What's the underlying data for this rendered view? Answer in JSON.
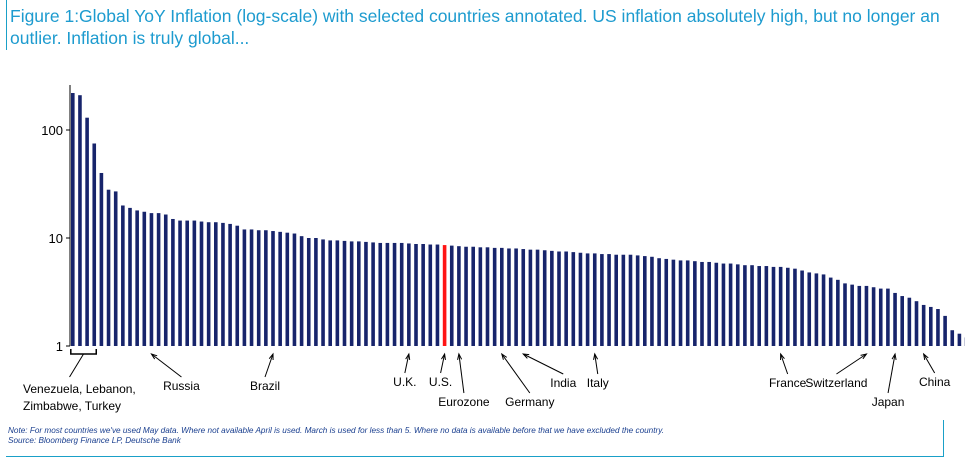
{
  "title": "Figure 1:Global YoY Inflation (log-scale) with selected countries annotated. US inflation absolutely high, but no longer an outlier. Inflation is truly global...",
  "footer": {
    "note": "Note: For most countries we've used May data. Where not available April is used. March is used for less than 5. Where no data is available before that we have excluded the country.",
    "source": "Source: Bloomberg Finance LP, Deutsche Bank"
  },
  "colors": {
    "bar": "#17246b",
    "highlight": "#ff1414",
    "accent": "#1d9bcf"
  },
  "chart_data": {
    "type": "bar",
    "scale": "log",
    "ylim": [
      1,
      250
    ],
    "y_ticks": [
      1,
      10,
      100
    ],
    "y_tick_labels": [
      "1",
      "10",
      "100"
    ],
    "highlight_index": 52,
    "values": [
      220,
      210,
      130,
      75,
      40,
      28,
      27,
      20,
      19,
      18,
      17.5,
      17,
      17,
      16.5,
      15,
      14.5,
      14.5,
      14.5,
      14.2,
      14,
      14,
      13.8,
      13.5,
      13,
      12,
      12,
      11.8,
      11.8,
      11.6,
      11.4,
      11.2,
      11,
      10.4,
      10,
      10,
      9.7,
      9.5,
      9.5,
      9.4,
      9.3,
      9.3,
      9.2,
      9.1,
      9,
      9,
      9,
      9,
      8.9,
      8.8,
      8.8,
      8.7,
      8.7,
      8.6,
      8.5,
      8.4,
      8.3,
      8.3,
      8.2,
      8.2,
      8.1,
      8.1,
      8,
      8,
      7.9,
      7.8,
      7.8,
      7.7,
      7.6,
      7.5,
      7.5,
      7.4,
      7.3,
      7.2,
      7.2,
      7.1,
      7.1,
      7,
      7,
      7,
      6.9,
      6.8,
      6.7,
      6.5,
      6.4,
      6.3,
      6.2,
      6.2,
      6.1,
      6,
      6,
      5.9,
      5.8,
      5.8,
      5.7,
      5.6,
      5.6,
      5.5,
      5.5,
      5.4,
      5.4,
      5.3,
      5.2,
      5,
      4.8,
      4.7,
      4.6,
      4.3,
      4.1,
      3.8,
      3.7,
      3.6,
      3.6,
      3.5,
      3.4,
      3.4,
      3.1,
      2.9,
      2.8,
      2.6,
      2.4,
      2.3,
      2.2,
      1.9,
      1.4,
      1.3,
      1.2,
      1.05
    ],
    "annotations": [
      {
        "text": "Venezuela, Lebanon,",
        "text2": "Zimbabwe, Turkey",
        "bar_start": 0,
        "bar_end": 3,
        "kind": "bracket"
      },
      {
        "text": "Russia",
        "bar": 11
      },
      {
        "text": "Brazil",
        "bar": 28
      },
      {
        "text": "U.K.",
        "bar": 47
      },
      {
        "text": "U.S.",
        "bar": 52
      },
      {
        "text": "Eurozone",
        "bar": 54
      },
      {
        "text": "Germany",
        "bar": 60
      },
      {
        "text": "India",
        "bar": 63
      },
      {
        "text": "Italy",
        "bar": 73
      },
      {
        "text": "France",
        "bar": 99
      },
      {
        "text": "Switzerland",
        "bar": 111
      },
      {
        "text": "Japan",
        "bar": 115
      },
      {
        "text": "China",
        "bar": 119
      }
    ]
  }
}
